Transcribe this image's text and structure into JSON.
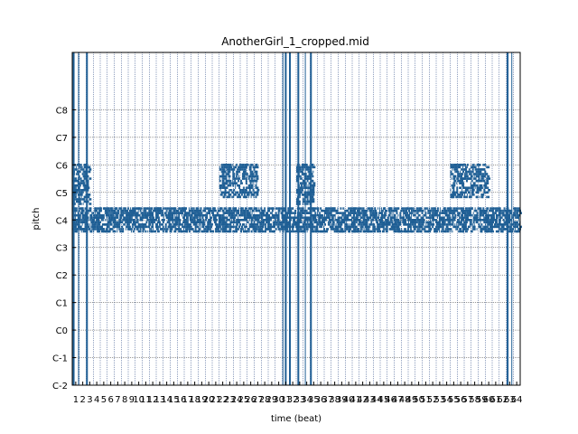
{
  "chart_data": {
    "type": "heatmap",
    "title": "AnotherGirl_1_cropped.mid",
    "xlabel": "time (beat)",
    "ylabel": "pitch",
    "xlim": [
      0,
      64
    ],
    "ylim": [
      -24,
      121
    ],
    "grid": true,
    "y_ticks": [
      {
        "label": "C-2",
        "value": -24
      },
      {
        "label": "C-1",
        "value": -12
      },
      {
        "label": "C0",
        "value": 0
      },
      {
        "label": "C1",
        "value": 12
      },
      {
        "label": "C2",
        "value": 24
      },
      {
        "label": "C3",
        "value": 36
      },
      {
        "label": "C4",
        "value": 48
      },
      {
        "label": "C5",
        "value": 60
      },
      {
        "label": "C6",
        "value": 72
      },
      {
        "label": "C7",
        "value": 84
      },
      {
        "label": "C8",
        "value": 96
      }
    ],
    "x_ticks": [
      "1",
      "2",
      "3",
      "4",
      "5",
      "6",
      "7",
      "8",
      "9",
      "10",
      "11",
      "12",
      "13",
      "14",
      "15",
      "16",
      "17",
      "18",
      "19",
      "20",
      "21",
      "22",
      "23",
      "24",
      "25",
      "26",
      "27",
      "28",
      "29",
      "30",
      "31",
      "32",
      "33",
      "34",
      "35",
      "36",
      "37",
      "38",
      "39",
      "40",
      "41",
      "42",
      "43",
      "44",
      "45",
      "46",
      "47",
      "48",
      "49",
      "50",
      "51",
      "52",
      "53",
      "54",
      "55",
      "56",
      "57",
      "58",
      "59",
      "60",
      "61",
      "62",
      "63",
      "64"
    ],
    "note_color": "#1f5f95",
    "grid_color": "#1f3f7f",
    "full_height_lines": [
      {
        "beat": 0.2,
        "weight": 2
      },
      {
        "beat": 0.9,
        "weight": 1
      },
      {
        "beat": 2.1,
        "weight": 2
      },
      {
        "beat": 30.1,
        "weight": 1
      },
      {
        "beat": 30.5,
        "weight": 2
      },
      {
        "beat": 31.1,
        "weight": 2
      },
      {
        "beat": 32.3,
        "weight": 2
      },
      {
        "beat": 33.3,
        "weight": 1
      },
      {
        "beat": 34.1,
        "weight": 2
      },
      {
        "beat": 62.2,
        "weight": 2
      },
      {
        "beat": 62.8,
        "weight": 1
      }
    ],
    "note_regions": [
      {
        "start": 0,
        "end": 64,
        "low": 43,
        "high": 53,
        "density": 0.55
      },
      {
        "start": 0,
        "end": 2.5,
        "low": 55,
        "high": 72,
        "density": 0.5
      },
      {
        "start": 32,
        "end": 34.5,
        "low": 55,
        "high": 72,
        "density": 0.5
      },
      {
        "start": 21,
        "end": 26.5,
        "low": 58,
        "high": 72,
        "density": 0.45
      },
      {
        "start": 54,
        "end": 59.5,
        "low": 58,
        "high": 72,
        "density": 0.45
      }
    ]
  }
}
